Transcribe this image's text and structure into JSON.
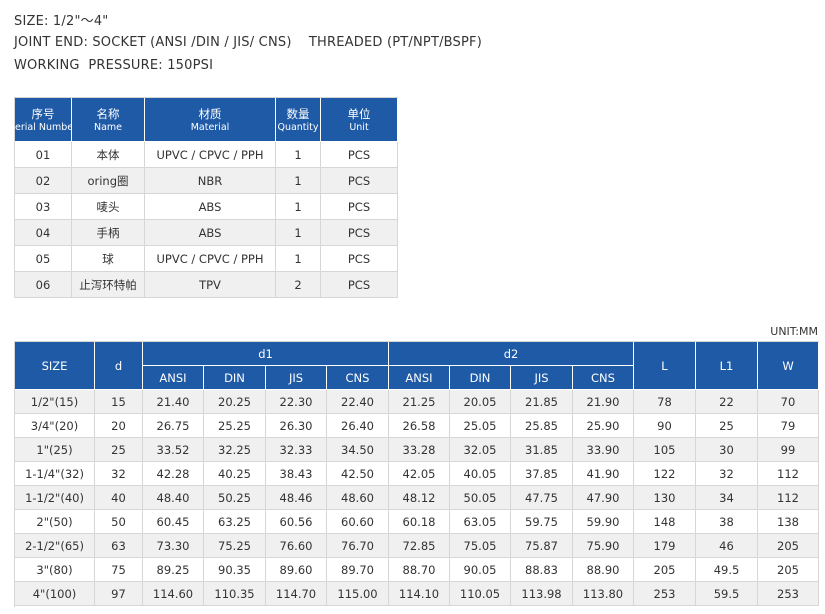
{
  "header": {
    "lines": [
      "SIZE: 1/2\"～4\"",
      "JOINT END: SOCKET (ANSI /DIN / JIS/ CNS)    THREADED (PT/NPT/BSPF)",
      "WORKING  PRESSURE: 150PSI"
    ]
  },
  "parts": {
    "columns": [
      {
        "zh": "序号",
        "en": "Serial Number"
      },
      {
        "zh": "名称",
        "en": "Name"
      },
      {
        "zh": "材质",
        "en": "Material"
      },
      {
        "zh": "数量",
        "en": "Quantity"
      },
      {
        "zh": "单位",
        "en": "Unit"
      }
    ],
    "rows": [
      [
        "01",
        "本体",
        "UPVC / CPVC / PPH",
        "1",
        "PCS"
      ],
      [
        "02",
        "oring圈",
        "NBR",
        "1",
        "PCS"
      ],
      [
        "03",
        "唛头",
        "ABS",
        "1",
        "PCS"
      ],
      [
        "04",
        "手柄",
        "ABS",
        "1",
        "PCS"
      ],
      [
        "05",
        "球",
        "UPVC / CPVC / PPH",
        "1",
        "PCS"
      ],
      [
        "06",
        "止泻环特帕",
        "TPV",
        "2",
        "PCS"
      ]
    ]
  },
  "dimensions": {
    "unit": "UNIT:MM",
    "size": "SIZE",
    "d": "d",
    "d1": "d1",
    "d2": "d2",
    "d1_standards": [
      "ANSI",
      "DIN",
      "JIS",
      "CNS"
    ],
    "d2_standards": [
      "ANSI",
      "DIN",
      "JIS",
      "CNS"
    ],
    "L": "L",
    "L1": "L1",
    "W": "W",
    "rows": [
      [
        "1/2\"(15)",
        "15",
        "21.40",
        "20.25",
        "22.30",
        "22.40",
        "21.25",
        "20.05",
        "21.85",
        "21.90",
        "78",
        "22",
        "70"
      ],
      [
        "3/4\"(20)",
        "20",
        "26.75",
        "25.25",
        "26.30",
        "26.40",
        "26.58",
        "25.05",
        "25.85",
        "25.90",
        "90",
        "25",
        "79"
      ],
      [
        "1\"(25)",
        "25",
        "33.52",
        "32.25",
        "32.33",
        "34.50",
        "33.28",
        "32.05",
        "31.85",
        "33.90",
        "105",
        "30",
        "99"
      ],
      [
        "1-1/4\"(32)",
        "32",
        "42.28",
        "40.25",
        "38.43",
        "42.50",
        "42.05",
        "40.05",
        "37.85",
        "41.90",
        "122",
        "32",
        "112"
      ],
      [
        "1-1/2\"(40)",
        "40",
        "48.40",
        "50.25",
        "48.46",
        "48.60",
        "48.12",
        "50.05",
        "47.75",
        "47.90",
        "130",
        "34",
        "112"
      ],
      [
        "2\"(50)",
        "50",
        "60.45",
        "63.25",
        "60.56",
        "60.60",
        "60.18",
        "63.05",
        "59.75",
        "59.90",
        "148",
        "38",
        "138"
      ],
      [
        "2-1/2\"(65)",
        "63",
        "73.30",
        "75.25",
        "76.60",
        "76.70",
        "72.85",
        "75.05",
        "75.87",
        "75.90",
        "179",
        "46",
        "205"
      ],
      [
        "3\"(80)",
        "75",
        "89.25",
        "90.35",
        "89.60",
        "89.70",
        "88.70",
        "90.05",
        "88.83",
        "88.90",
        "205",
        "49.5",
        "205"
      ],
      [
        "4\"(100)",
        "97",
        "114.60",
        "110.35",
        "114.70",
        "115.00",
        "114.10",
        "110.05",
        "113.98",
        "113.80",
        "253",
        "59.5",
        "253"
      ]
    ]
  }
}
